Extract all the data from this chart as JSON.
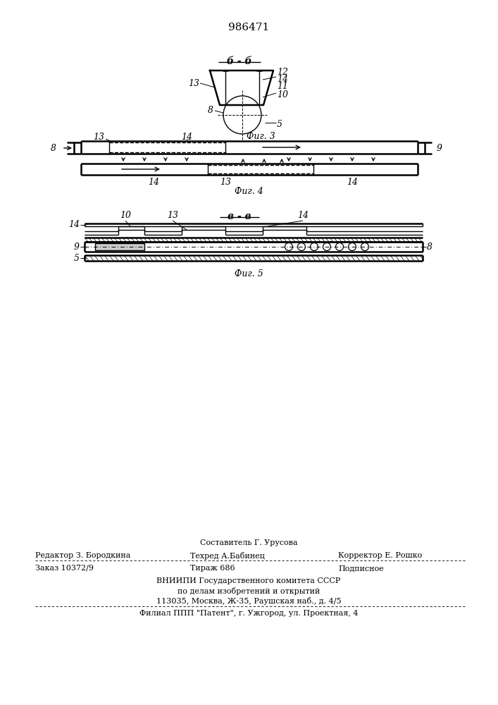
{
  "patent_number": "986471",
  "bg_color": "#ffffff",
  "line_color": "#000000",
  "fig_width": 7.07,
  "fig_height": 10.0,
  "footer_lines": [
    "Составитель Г. Урусова",
    "Редактор З. Бородкина",
    "Техред А.Бабинец",
    "Корректор Е. Рошко",
    "Заказ 10372/9",
    "Тираж 686",
    "Подписное",
    "ВНИИПИ Государственного комитета СССР",
    "по делам изобретений и открытий",
    "113035, Москва, Ж-35, Раушская наб., д. 4/5",
    "Филиал ППП \"Патент\", г. Ужгород, ул. Проектная, 4"
  ]
}
